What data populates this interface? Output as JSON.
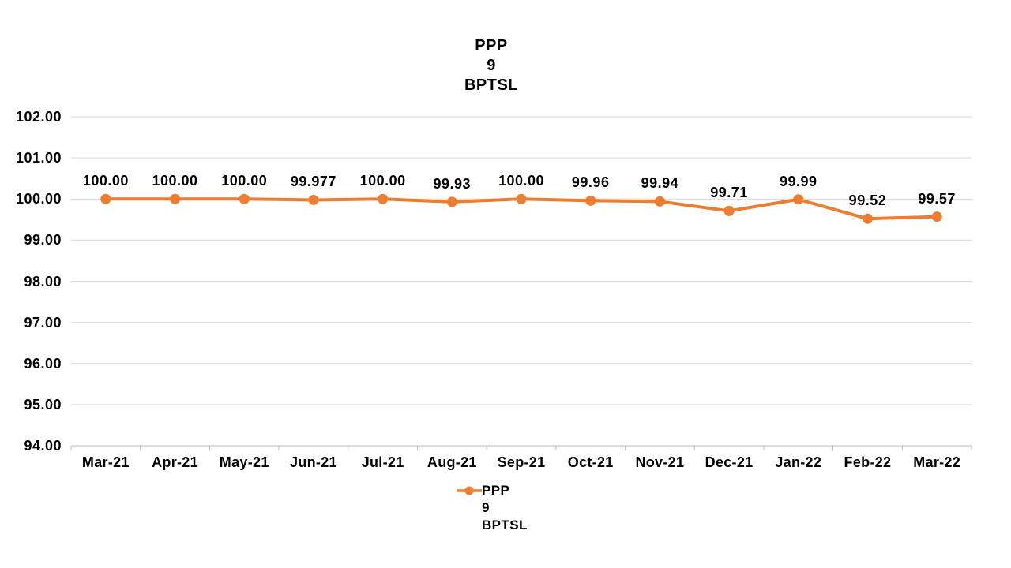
{
  "title_lines": [
    "PPP",
    "9",
    "BPTSL"
  ],
  "legend": {
    "lines": [
      "PPP",
      "9",
      "BPTSL"
    ]
  },
  "colors": {
    "series": "#ED7D31",
    "gridline": "#D9D9D9",
    "axis_line": "#BFBFBF",
    "text": "#000000",
    "background": "#FFFFFF"
  },
  "chart_data": {
    "type": "line",
    "title": "PPP 9 BPTSL",
    "categories": [
      "Mar-21",
      "Apr-21",
      "May-21",
      "Jun-21",
      "Jul-21",
      "Aug-21",
      "Sep-21",
      "Oct-21",
      "Nov-21",
      "Dec-21",
      "Jan-22",
      "Feb-22",
      "Mar-22"
    ],
    "series": [
      {
        "name": "PPP 9 BPTSL",
        "values": [
          100.0,
          100.0,
          100.0,
          99.977,
          100.0,
          99.93,
          100.0,
          99.96,
          99.94,
          99.71,
          99.99,
          99.52,
          99.57
        ]
      }
    ],
    "data_labels": [
      "100.00",
      "100.00",
      "100.00",
      "99.977",
      "100.00",
      "99.93",
      "100.00",
      "99.96",
      "99.94",
      "99.71",
      "99.99",
      "99.52",
      "99.57"
    ],
    "xlabel": "",
    "ylabel": "",
    "ylim": [
      94,
      102
    ],
    "yticks": [
      "102.00",
      "101.00",
      "100.00",
      "99.00",
      "98.00",
      "97.00",
      "96.00",
      "95.00",
      "94.00"
    ],
    "grid": true,
    "legend_position": "bottom"
  }
}
